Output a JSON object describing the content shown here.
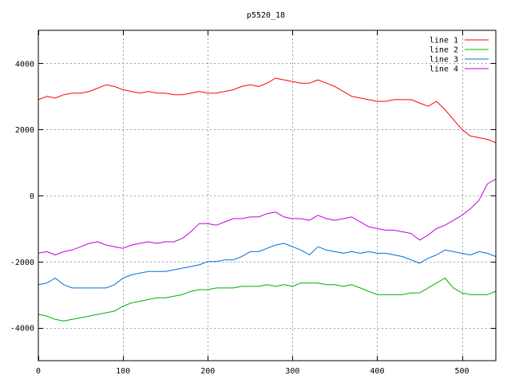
{
  "chart_data": {
    "type": "line",
    "title": "p5520_18",
    "xlabel": "",
    "ylabel": "",
    "xlim": [
      0,
      540
    ],
    "ylim": [
      -5000,
      5000
    ],
    "xticks": [
      0,
      100,
      200,
      300,
      400,
      500
    ],
    "yticks": [
      -4000,
      -2000,
      0,
      2000,
      4000
    ],
    "grid": true,
    "legend_position": "top-right",
    "series": [
      {
        "name": "line 1",
        "color": "#ff0000",
        "x": [
          0,
          10,
          20,
          30,
          40,
          50,
          60,
          70,
          80,
          90,
          100,
          110,
          120,
          130,
          140,
          150,
          160,
          170,
          180,
          190,
          200,
          210,
          220,
          230,
          240,
          250,
          260,
          270,
          280,
          290,
          300,
          310,
          320,
          330,
          340,
          350,
          360,
          370,
          380,
          390,
          400,
          410,
          420,
          430,
          440,
          450,
          460,
          470,
          480,
          490,
          500,
          510,
          520,
          530,
          540
        ],
        "y": [
          2900,
          3000,
          2950,
          3050,
          3100,
          3100,
          3150,
          3250,
          3350,
          3300,
          3200,
          3150,
          3100,
          3150,
          3100,
          3100,
          3050,
          3050,
          3100,
          3150,
          3100,
          3100,
          3150,
          3200,
          3300,
          3350,
          3300,
          3400,
          3550,
          3500,
          3450,
          3400,
          3400,
          3500,
          3400,
          3300,
          3150,
          3000,
          2950,
          2900,
          2850,
          2850,
          2900,
          2900,
          2900,
          2800,
          2700,
          2850,
          2600,
          2300,
          2000,
          1800,
          1750,
          1700,
          1600
        ]
      },
      {
        "name": "line 2",
        "color": "#00b000",
        "x": [
          0,
          10,
          20,
          30,
          40,
          50,
          60,
          70,
          80,
          90,
          100,
          110,
          120,
          130,
          140,
          150,
          160,
          170,
          180,
          190,
          200,
          210,
          220,
          230,
          240,
          250,
          260,
          270,
          280,
          290,
          300,
          310,
          320,
          330,
          340,
          350,
          360,
          370,
          380,
          390,
          400,
          410,
          420,
          430,
          440,
          450,
          460,
          470,
          480,
          490,
          500,
          510,
          520,
          530,
          540
        ],
        "y": [
          -3600,
          -3650,
          -3750,
          -3800,
          -3750,
          -3700,
          -3650,
          -3600,
          -3550,
          -3500,
          -3350,
          -3250,
          -3200,
          -3150,
          -3100,
          -3100,
          -3050,
          -3000,
          -2900,
          -2850,
          -2850,
          -2800,
          -2800,
          -2800,
          -2750,
          -2750,
          -2750,
          -2700,
          -2750,
          -2700,
          -2750,
          -2650,
          -2650,
          -2650,
          -2700,
          -2700,
          -2750,
          -2700,
          -2800,
          -2900,
          -3000,
          -3000,
          -3000,
          -3000,
          -2950,
          -2950,
          -2800,
          -2650,
          -2500,
          -2800,
          -2950,
          -3000,
          -3000,
          -3000,
          -2900
        ]
      },
      {
        "name": "line 3",
        "color": "#0070e0",
        "x": [
          0,
          10,
          20,
          30,
          40,
          50,
          60,
          70,
          80,
          90,
          100,
          110,
          120,
          130,
          140,
          150,
          160,
          170,
          180,
          190,
          200,
          210,
          220,
          230,
          240,
          250,
          260,
          270,
          280,
          290,
          300,
          310,
          320,
          330,
          340,
          350,
          360,
          370,
          380,
          390,
          400,
          410,
          420,
          430,
          440,
          450,
          460,
          470,
          480,
          490,
          500,
          510,
          520,
          530,
          540
        ],
        "y": [
          -2700,
          -2650,
          -2500,
          -2700,
          -2800,
          -2800,
          -2800,
          -2800,
          -2800,
          -2700,
          -2500,
          -2400,
          -2350,
          -2300,
          -2300,
          -2300,
          -2250,
          -2200,
          -2150,
          -2100,
          -2000,
          -2000,
          -1950,
          -1950,
          -1850,
          -1700,
          -1700,
          -1600,
          -1500,
          -1450,
          -1550,
          -1650,
          -1800,
          -1550,
          -1650,
          -1700,
          -1750,
          -1700,
          -1750,
          -1700,
          -1750,
          -1750,
          -1800,
          -1850,
          -1950,
          -2050,
          -1900,
          -1800,
          -1650,
          -1700,
          -1750,
          -1800,
          -1700,
          -1750,
          -1850
        ]
      },
      {
        "name": "line 4",
        "color": "#c000e0",
        "x": [
          0,
          10,
          20,
          30,
          40,
          50,
          60,
          70,
          80,
          90,
          100,
          110,
          120,
          130,
          140,
          150,
          160,
          170,
          180,
          190,
          200,
          210,
          220,
          230,
          240,
          250,
          260,
          270,
          280,
          290,
          300,
          310,
          320,
          330,
          340,
          350,
          360,
          370,
          380,
          390,
          400,
          410,
          420,
          430,
          440,
          450,
          460,
          470,
          480,
          490,
          500,
          510,
          520,
          530,
          540
        ],
        "y": [
          -1750,
          -1700,
          -1800,
          -1700,
          -1650,
          -1550,
          -1450,
          -1400,
          -1500,
          -1550,
          -1600,
          -1500,
          -1450,
          -1400,
          -1450,
          -1400,
          -1400,
          -1300,
          -1100,
          -850,
          -850,
          -900,
          -800,
          -700,
          -700,
          -650,
          -650,
          -550,
          -500,
          -650,
          -700,
          -700,
          -750,
          -600,
          -700,
          -750,
          -700,
          -650,
          -800,
          -950,
          -1000,
          -1050,
          -1050,
          -1100,
          -1150,
          -1350,
          -1200,
          -1000,
          -900,
          -750,
          -600,
          -400,
          -150,
          350,
          500
        ]
      }
    ]
  }
}
